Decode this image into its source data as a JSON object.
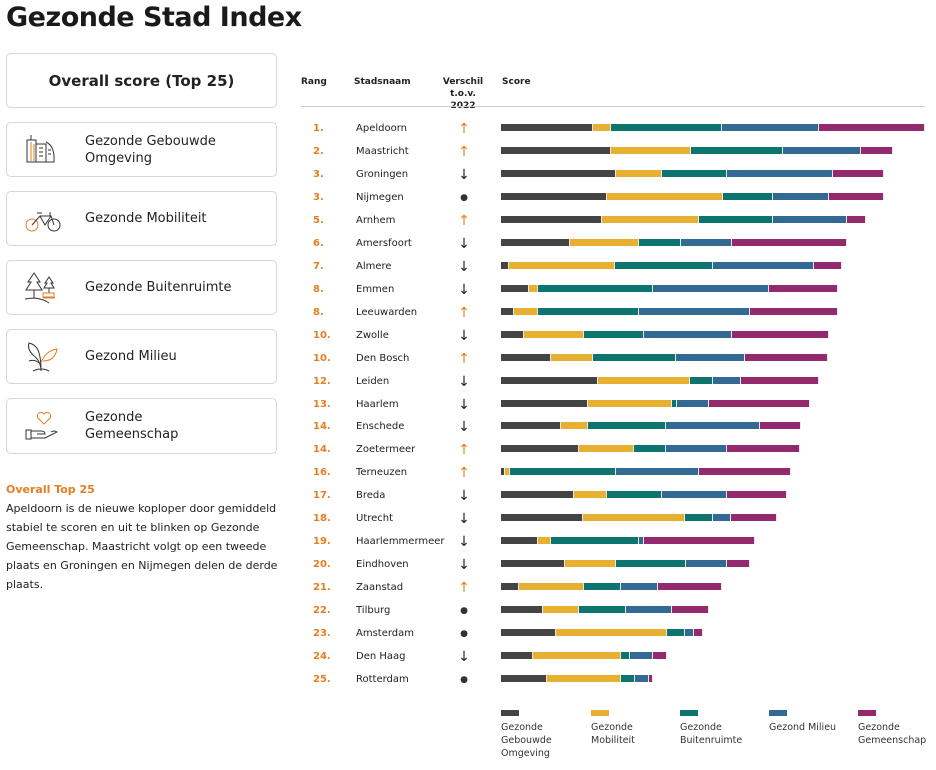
{
  "page_title": "Gezonde Stad Index",
  "sidebar": {
    "main_button": "Overall score (Top 25)",
    "items": [
      {
        "label": "Gezonde Gebouwde Omgeving",
        "icon": "buildings-icon"
      },
      {
        "label": "Gezonde Mobiliteit",
        "icon": "bicycle-icon"
      },
      {
        "label": "Gezonde Buitenruimte",
        "icon": "trees-bench-icon"
      },
      {
        "label": "Gezond Milieu",
        "icon": "plant-icon"
      },
      {
        "label": "Gezonde Gemeenschap",
        "icon": "heart-hand-icon"
      }
    ],
    "intro_heading": "Overall Top 25",
    "intro_text": "Apeldoorn is de nieuwe koploper door gemiddeld stabiel te scoren en uit te blinken op Gezonde Gemeenschap. Maastricht volgt op een tweede plaats en Groningen en Nijmegen delen de derde plaats."
  },
  "table": {
    "headers": {
      "rank": "Rang",
      "city": "Stadsnaam",
      "change_line1": "Verschil",
      "change_line2": "t.o.v. 2022",
      "score": "Score"
    }
  },
  "colors": {
    "accent": "#e67e22",
    "up": "#e67e22",
    "down": "#222222"
  },
  "chart_data": {
    "type": "bar",
    "orientation": "horizontal",
    "stacked": true,
    "legend_position": "bottom",
    "grid": false,
    "categories": [
      "Apeldoorn",
      "Maastricht",
      "Groningen",
      "Nijmegen",
      "Arnhem",
      "Amersfoort",
      "Almere",
      "Emmen",
      "Leeuwarden",
      "Zwolle",
      "Den Bosch",
      "Leiden",
      "Haarlem",
      "Enschede",
      "Zoetermeer",
      "Terneuzen",
      "Breda",
      "Utrecht",
      "Haarlemmermeer",
      "Eindhoven",
      "Zaanstad",
      "Tilburg",
      "Amsterdam",
      "Den Haag",
      "Rotterdam"
    ],
    "ranks": [
      "1.",
      "2.",
      "3.",
      "3.",
      "5.",
      "6.",
      "7.",
      "8.",
      "8.",
      "10.",
      "10.",
      "12.",
      "13.",
      "14.",
      "14.",
      "16.",
      "17.",
      "18.",
      "19.",
      "20.",
      "21.",
      "22.",
      "23.",
      "24.",
      "25."
    ],
    "change_vs_2022": [
      "up",
      "up",
      "down",
      "same",
      "up",
      "down",
      "down",
      "down",
      "up",
      "down",
      "up",
      "down",
      "down",
      "down",
      "up",
      "up",
      "down",
      "down",
      "down",
      "down",
      "up",
      "same",
      "same",
      "down",
      "same"
    ],
    "series": [
      {
        "name": "Gezonde Gebouwde Omgeving",
        "color": "#444444",
        "values": [
          21.6,
          26.0,
          27.1,
          25.0,
          23.8,
          16.2,
          2.0,
          6.5,
          3.1,
          5.4,
          11.8,
          22.8,
          20.6,
          14.1,
          18.3,
          0.9,
          17.2,
          19.4,
          8.7,
          15.2,
          4.3,
          9.8,
          13.0,
          7.6,
          10.9
        ]
      },
      {
        "name": "Gezonde Mobiliteit",
        "color": "#e8b030",
        "values": [
          4.4,
          18.7,
          10.9,
          27.3,
          23.0,
          16.4,
          25.0,
          2.2,
          5.6,
          14.2,
          9.9,
          21.8,
          19.8,
          6.5,
          13.1,
          1.2,
          7.7,
          24.1,
          3.2,
          12.0,
          15.3,
          8.7,
          26.1,
          20.7,
          17.4
        ]
      },
      {
        "name": "Gezonde Buitenruimte",
        "color": "#0e7470",
        "values": [
          26.1,
          21.7,
          15.3,
          11.9,
          17.4,
          9.8,
          23.0,
          27.2,
          23.9,
          14.2,
          19.6,
          5.5,
          1.0,
          18.4,
          7.6,
          25.0,
          13.1,
          6.5,
          20.7,
          16.4,
          8.7,
          10.9,
          4.4,
          2.2,
          3.2
        ]
      },
      {
        "name": "Gezond Milieu",
        "color": "#336a94",
        "values": [
          22.8,
          18.5,
          25.1,
          13.1,
          17.5,
          12.0,
          23.9,
          27.3,
          26.2,
          20.7,
          16.3,
          6.5,
          7.6,
          22.0,
          14.2,
          19.6,
          15.3,
          4.3,
          1.1,
          9.8,
          8.7,
          10.9,
          2.1,
          5.4,
          3.3
        ]
      },
      {
        "name": "Gezonde Gemeenschap",
        "color": "#932a6e",
        "values": [
          25.1,
          7.6,
          11.9,
          13.1,
          4.3,
          27.2,
          6.5,
          16.3,
          20.6,
          22.8,
          19.6,
          18.5,
          23.9,
          9.7,
          17.4,
          21.7,
          14.1,
          10.8,
          26.1,
          5.4,
          15.1,
          8.7,
          2.1,
          3.2,
          1.0
        ]
      }
    ]
  }
}
